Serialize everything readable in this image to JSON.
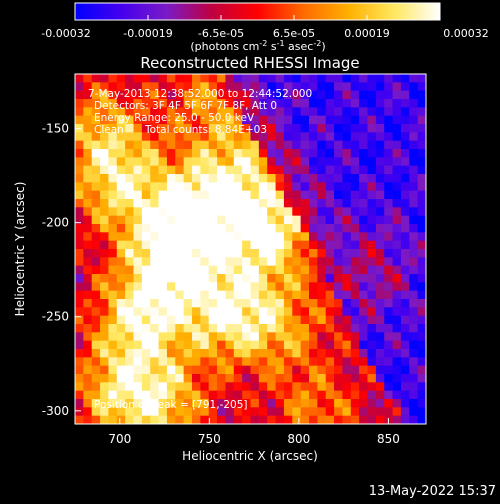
{
  "colorbar": {
    "ticks": [
      "-0.00032",
      "-0.00019",
      "-6.5e-05",
      "6.5e-05",
      "0.00019",
      "0.00032"
    ],
    "unit_prefix": "(photons cm",
    "unit_exp1": "-2",
    "unit_mid1": " s",
    "unit_exp2": "-1",
    "unit_mid2": " asec",
    "unit_exp3": "-2",
    "unit_suffix": ")",
    "colors": [
      "#0000ff",
      "#4400ee",
      "#7a1ac8",
      "#c00040",
      "#ff0000",
      "#ff6a00",
      "#ffb000",
      "#ffe860",
      "#ffffff"
    ]
  },
  "overlay": {
    "time_range": "7-May-2013 12:38:52.000 to 12:44:52.000",
    "detectors": "Detectors: 3F 4F 5F 6F 7F 8F, Att 0",
    "energy": "Energy Range: 25.0 - 50.0 keV",
    "algorithm": "Clean",
    "counts": "Total counts: 8.84E+03",
    "peak": "Position of Peak = [791,-205]"
  },
  "footer": {
    "date": "13-May-2022 15:37"
  },
  "chart_data": {
    "type": "heatmap",
    "title": "Reconstructed RHESSI Image",
    "xlabel": "Heliocentric X (arcsec)",
    "ylabel": "Heliocentric Y (arcsec)",
    "xlim": [
      675,
      871
    ],
    "ylim": [
      -307,
      -121
    ],
    "xticks": [
      700,
      750,
      800,
      850
    ],
    "yticks": [
      -300,
      -250,
      -200,
      -150
    ],
    "value_range": [
      -0.00032,
      0.00032
    ],
    "peak": [
      791,
      -205
    ]
  }
}
